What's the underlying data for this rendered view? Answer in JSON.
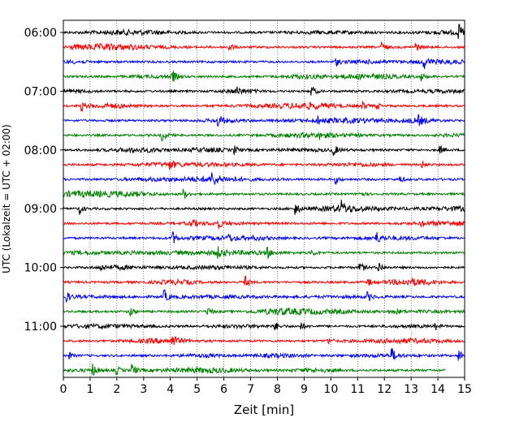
{
  "chart_data": {
    "type": "line",
    "title": "",
    "xlabel": "Zeit  [min]",
    "ylabel": "UTC (Lokalzeit = UTC + 02:00)",
    "xlim": [
      0,
      15
    ],
    "x_ticks": [
      0,
      1,
      2,
      3,
      4,
      5,
      6,
      7,
      8,
      9,
      10,
      11,
      12,
      13,
      14,
      15
    ],
    "y_tick_labels": [
      "06:00",
      "07:00",
      "08:00",
      "09:00",
      "10:00",
      "11:00"
    ],
    "y_tick_rows": [
      0,
      4,
      8,
      12,
      16,
      20
    ],
    "rows_per_hour": 4,
    "minutes_per_row": 15,
    "grid_x": true,
    "grid_style": "dotted",
    "series_colors": [
      "#000000",
      "#ff0000",
      "#0000ff",
      "#008000"
    ],
    "row_start_times": [
      "06:00",
      "06:15",
      "06:30",
      "06:45",
      "07:00",
      "07:15",
      "07:30",
      "07:45",
      "08:00",
      "08:15",
      "08:30",
      "08:45",
      "09:00",
      "09:15",
      "09:30",
      "09:45",
      "10:00",
      "10:15",
      "10:30",
      "10:45",
      "11:00",
      "11:15",
      "11:30",
      "11:45"
    ],
    "last_row_end_minute": 14.3,
    "events": [
      [
        [
          14.8,
          1.0
        ]
      ],
      [
        [
          6.2,
          0.8
        ],
        [
          11.9,
          0.9
        ],
        [
          13.2,
          0.7
        ]
      ],
      [
        [
          13.5,
          0.9
        ],
        [
          10.2,
          0.6
        ]
      ],
      [
        [
          4.1,
          0.9
        ],
        [
          13.4,
          0.7
        ]
      ],
      [
        [
          9.3,
          0.9
        ],
        [
          6.5,
          0.5
        ]
      ],
      [
        [
          0.7,
          0.8
        ],
        [
          11.2,
          0.7
        ],
        [
          11.7,
          0.6
        ]
      ],
      [
        [
          5.8,
          1.0
        ],
        [
          9.5,
          0.6
        ],
        [
          13.3,
          0.6
        ]
      ],
      [
        [
          3.7,
          1.0
        ],
        [
          9.6,
          0.5
        ]
      ],
      [
        [
          10.1,
          0.9
        ],
        [
          6.4,
          0.7
        ],
        [
          14.1,
          0.6
        ]
      ],
      [
        [
          4.0,
          0.6
        ],
        [
          13.4,
          0.7
        ]
      ],
      [
        [
          5.6,
          1.0
        ],
        [
          10.2,
          0.6
        ],
        [
          12.6,
          0.5
        ]
      ],
      [
        [
          4.5,
          0.9
        ],
        [
          11.1,
          0.5
        ]
      ],
      [
        [
          0.6,
          0.9
        ],
        [
          8.7,
          1.0
        ],
        [
          10.4,
          1.0
        ]
      ],
      [
        [
          4.8,
          0.8
        ],
        [
          5.8,
          0.7
        ],
        [
          13.4,
          0.5
        ]
      ],
      [
        [
          4.1,
          1.0
        ],
        [
          11.7,
          1.0
        ],
        [
          6.2,
          0.5
        ]
      ],
      [
        [
          5.8,
          0.7
        ],
        [
          7.6,
          1.0
        ],
        [
          9.3,
          0.6
        ]
      ],
      [
        [
          11.1,
          1.0
        ],
        [
          11.8,
          0.9
        ],
        [
          1.4,
          0.5
        ]
      ],
      [
        [
          6.8,
          1.0
        ],
        [
          11.4,
          0.6
        ]
      ],
      [
        [
          0.1,
          0.9
        ],
        [
          3.8,
          1.0
        ],
        [
          11.4,
          0.7
        ]
      ],
      [
        [
          2.5,
          0.9
        ],
        [
          5.4,
          0.8
        ],
        [
          12.4,
          0.6
        ]
      ],
      [
        [
          7.9,
          0.7
        ],
        [
          8.9,
          0.6
        ],
        [
          13.9,
          0.6
        ]
      ],
      [
        [
          4.1,
          1.0
        ],
        [
          9.9,
          0.5
        ]
      ],
      [
        [
          12.3,
          1.0
        ],
        [
          14.8,
          1.0
        ],
        [
          0.2,
          0.6
        ]
      ],
      [
        [
          1.1,
          1.0
        ],
        [
          2.6,
          1.0
        ],
        [
          2.0,
          0.7
        ]
      ]
    ]
  }
}
